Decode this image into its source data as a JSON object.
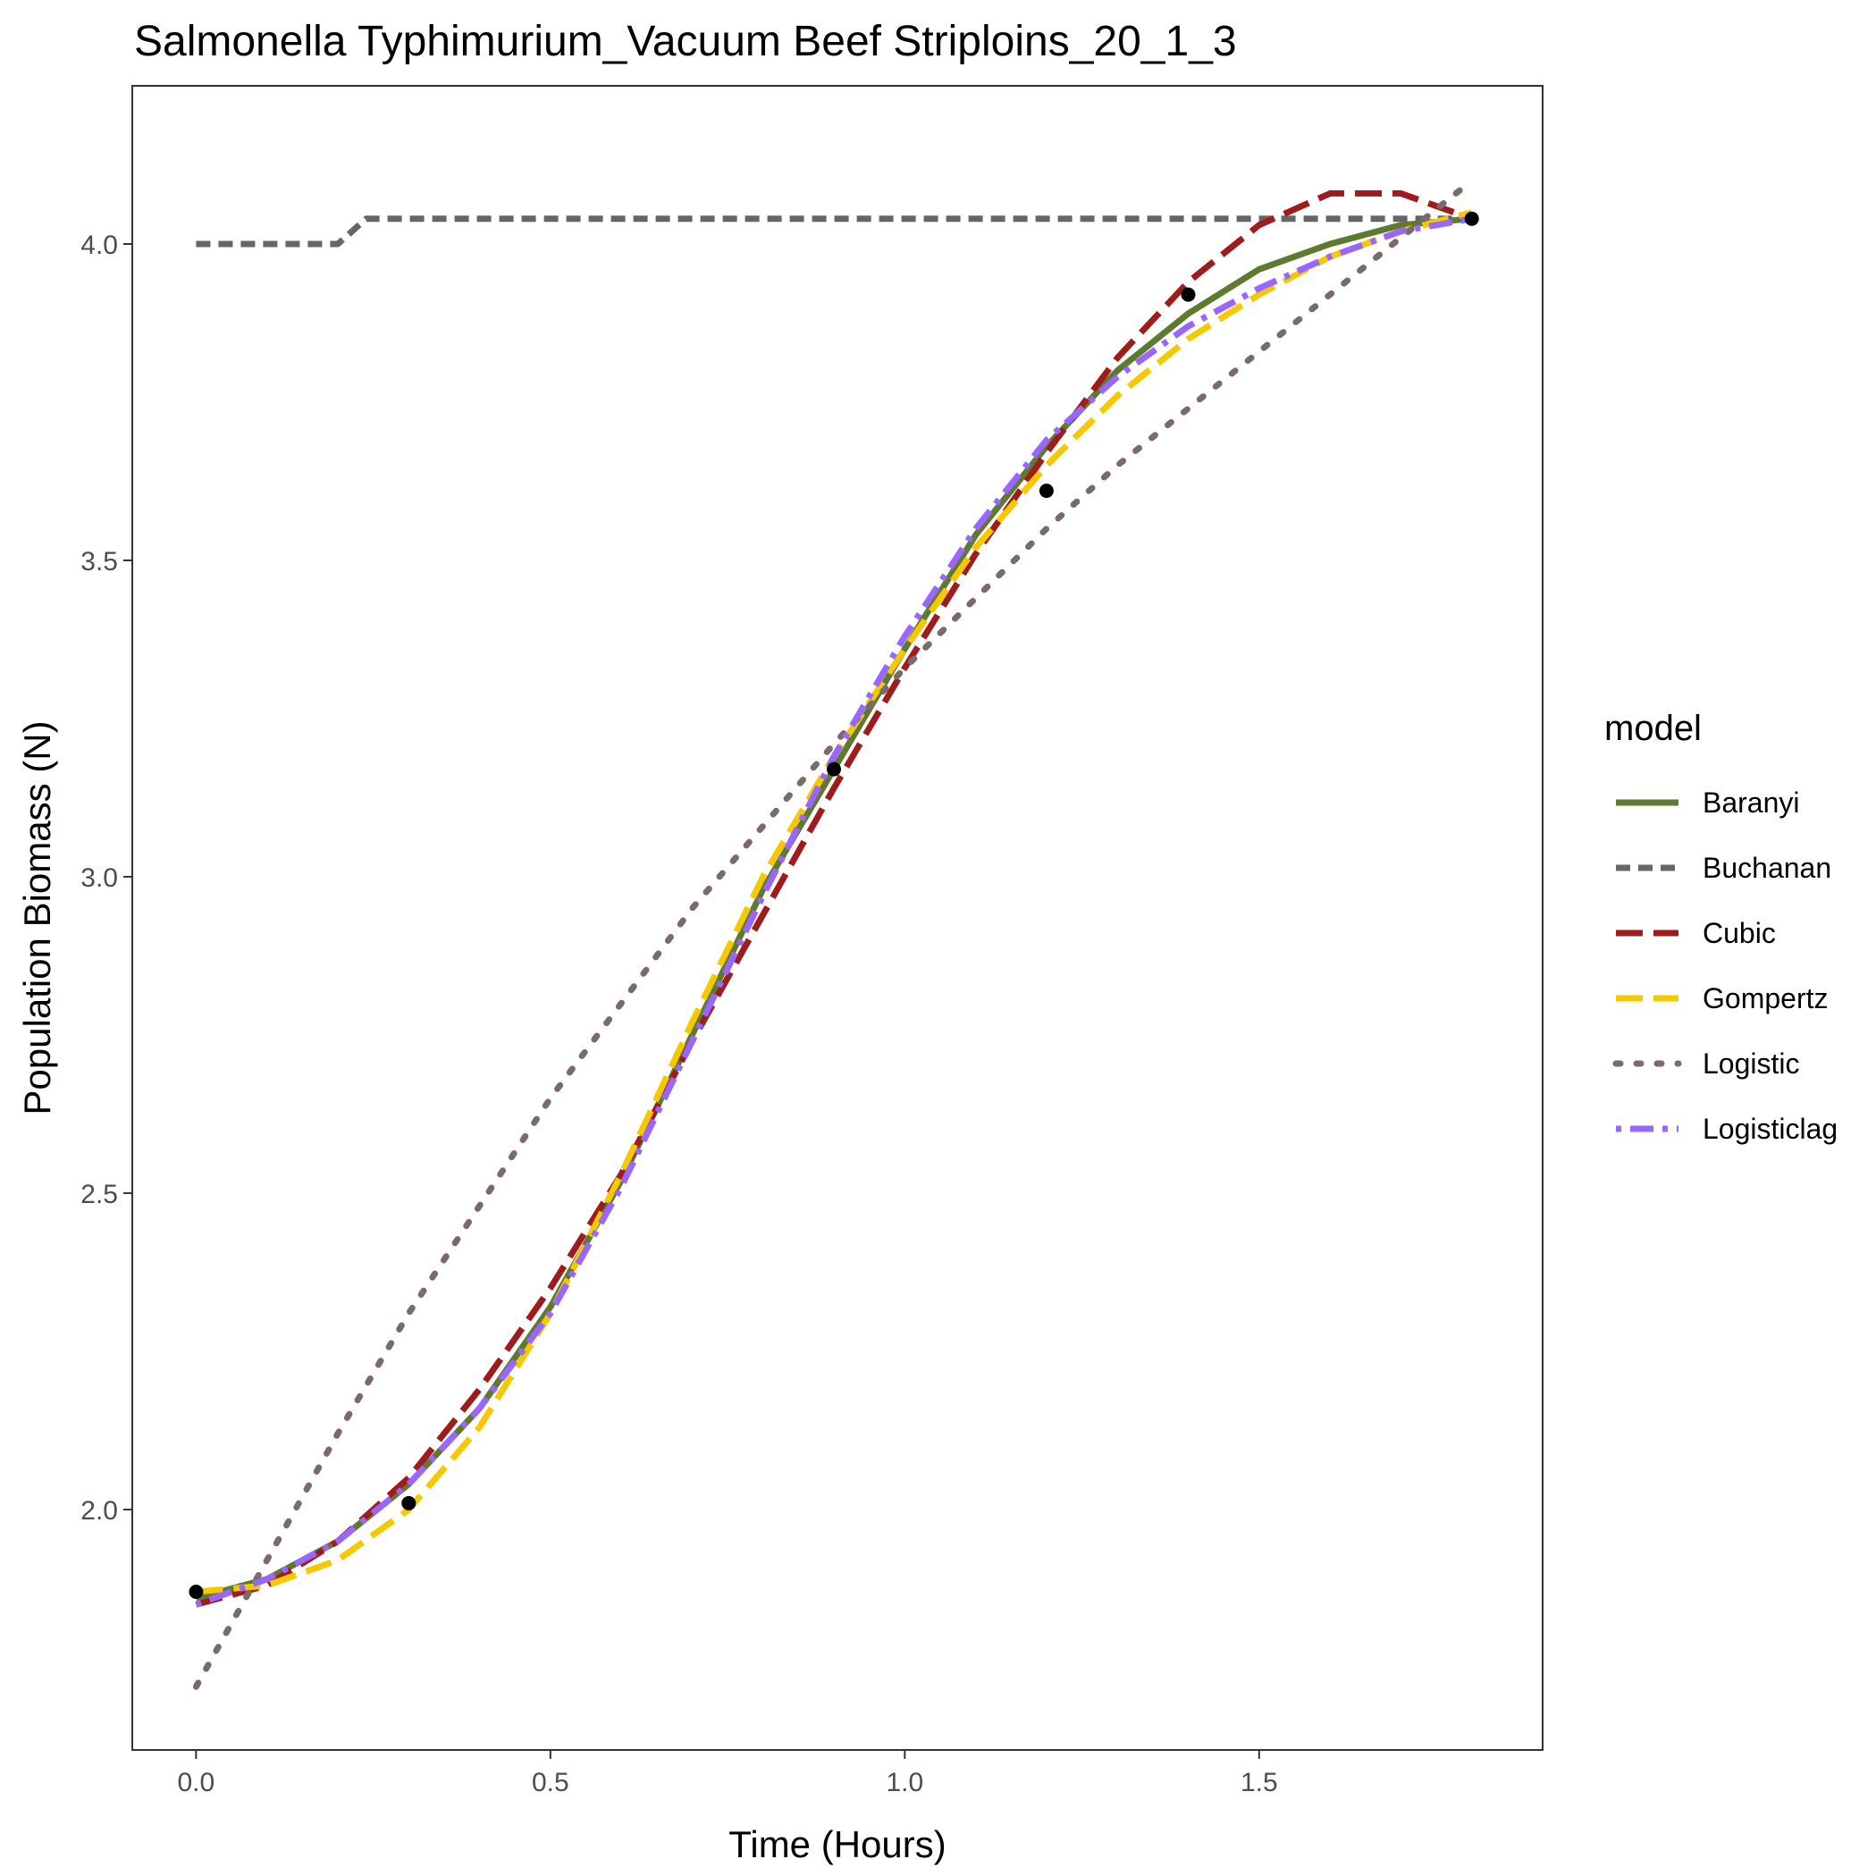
{
  "chart_data": {
    "type": "line",
    "title": "Salmonella Typhimurium_Vacuum Beef Striploins_20_1_3",
    "xlabel": "Time (Hours)",
    "ylabel": "Population Biomass (N)",
    "xlim": [
      -0.09,
      1.9
    ],
    "ylim": [
      1.62,
      4.25
    ],
    "x_ticks": [
      0.0,
      0.5,
      1.0,
      1.5
    ],
    "x_tick_labels": [
      "0.0",
      "0.5",
      "1.0",
      "1.5"
    ],
    "y_ticks": [
      2.0,
      2.5,
      3.0,
      3.5,
      4.0
    ],
    "y_tick_labels": [
      "2.0",
      "2.5",
      "3.0",
      "3.5",
      "4.0"
    ],
    "grid": false,
    "legend": {
      "title": "model",
      "position": "right",
      "entries": [
        "Baranyi",
        "Buchanan",
        "Cubic",
        "Gompertz",
        "Logistic",
        "Logisticlag"
      ]
    },
    "points": {
      "x": [
        0.0,
        0.3,
        0.9,
        1.2,
        1.4,
        1.8
      ],
      "y": [
        1.87,
        2.01,
        3.17,
        3.61,
        3.92,
        4.04
      ]
    },
    "series": [
      {
        "name": "Baranyi",
        "color": "#5e7a2e",
        "dash": "solid",
        "x": [
          0.0,
          0.1,
          0.2,
          0.3,
          0.4,
          0.5,
          0.6,
          0.7,
          0.8,
          0.9,
          1.0,
          1.1,
          1.2,
          1.3,
          1.4,
          1.5,
          1.6,
          1.7,
          1.8
        ],
        "y": [
          1.86,
          1.89,
          1.95,
          2.04,
          2.16,
          2.32,
          2.52,
          2.75,
          2.98,
          3.17,
          3.36,
          3.54,
          3.68,
          3.8,
          3.89,
          3.96,
          4.0,
          4.03,
          4.04
        ]
      },
      {
        "name": "Buchanan",
        "color": "#666666",
        "dash": "short-dash",
        "x": [
          0.0,
          0.2,
          0.24,
          0.4,
          0.6,
          0.8,
          1.0,
          1.2,
          1.4,
          1.6,
          1.8
        ],
        "y": [
          4.0,
          4.0,
          4.04,
          4.04,
          4.04,
          4.04,
          4.04,
          4.04,
          4.04,
          4.04,
          4.04
        ]
      },
      {
        "name": "Cubic",
        "color": "#a01c1c",
        "dash": "long-dash",
        "x": [
          0.0,
          0.1,
          0.2,
          0.3,
          0.4,
          0.5,
          0.6,
          0.7,
          0.8,
          0.9,
          1.0,
          1.1,
          1.2,
          1.3,
          1.4,
          1.5,
          1.6,
          1.7,
          1.8
        ],
        "y": [
          1.85,
          1.88,
          1.95,
          2.05,
          2.19,
          2.35,
          2.53,
          2.74,
          2.94,
          3.14,
          3.33,
          3.51,
          3.67,
          3.82,
          3.94,
          4.03,
          4.08,
          4.08,
          4.04
        ]
      },
      {
        "name": "Gompertz",
        "color": "#f5c800",
        "dash": "long-dash",
        "x": [
          0.0,
          0.1,
          0.2,
          0.3,
          0.4,
          0.5,
          0.6,
          0.7,
          0.8,
          0.9,
          1.0,
          1.1,
          1.2,
          1.3,
          1.4,
          1.5,
          1.6,
          1.7,
          1.8
        ],
        "y": [
          1.87,
          1.88,
          1.92,
          2.0,
          2.13,
          2.31,
          2.53,
          2.77,
          3.0,
          3.19,
          3.36,
          3.52,
          3.65,
          3.76,
          3.85,
          3.92,
          3.98,
          4.02,
          4.05
        ]
      },
      {
        "name": "Logistic",
        "color": "#7a6b6b",
        "dash": "dotted",
        "x": [
          0.0,
          0.1,
          0.2,
          0.3,
          0.4,
          0.5,
          0.6,
          0.7,
          0.8,
          0.9,
          1.0,
          1.1,
          1.2,
          1.3,
          1.4,
          1.5,
          1.6,
          1.7,
          1.8
        ],
        "y": [
          1.72,
          1.92,
          2.12,
          2.31,
          2.48,
          2.65,
          2.8,
          2.95,
          3.08,
          3.21,
          3.33,
          3.44,
          3.55,
          3.65,
          3.74,
          3.83,
          3.92,
          4.01,
          4.1
        ]
      },
      {
        "name": "Logisticlag",
        "color": "#9966ff",
        "dash": "dot-dash",
        "x": [
          0.0,
          0.1,
          0.2,
          0.3,
          0.4,
          0.5,
          0.6,
          0.7,
          0.8,
          0.9,
          1.0,
          1.1,
          1.2,
          1.3,
          1.4,
          1.5,
          1.6,
          1.7,
          1.8
        ],
        "y": [
          1.85,
          1.89,
          1.95,
          2.04,
          2.16,
          2.31,
          2.51,
          2.74,
          2.97,
          3.19,
          3.38,
          3.55,
          3.69,
          3.79,
          3.87,
          3.93,
          3.98,
          4.02,
          4.04
        ]
      }
    ]
  }
}
